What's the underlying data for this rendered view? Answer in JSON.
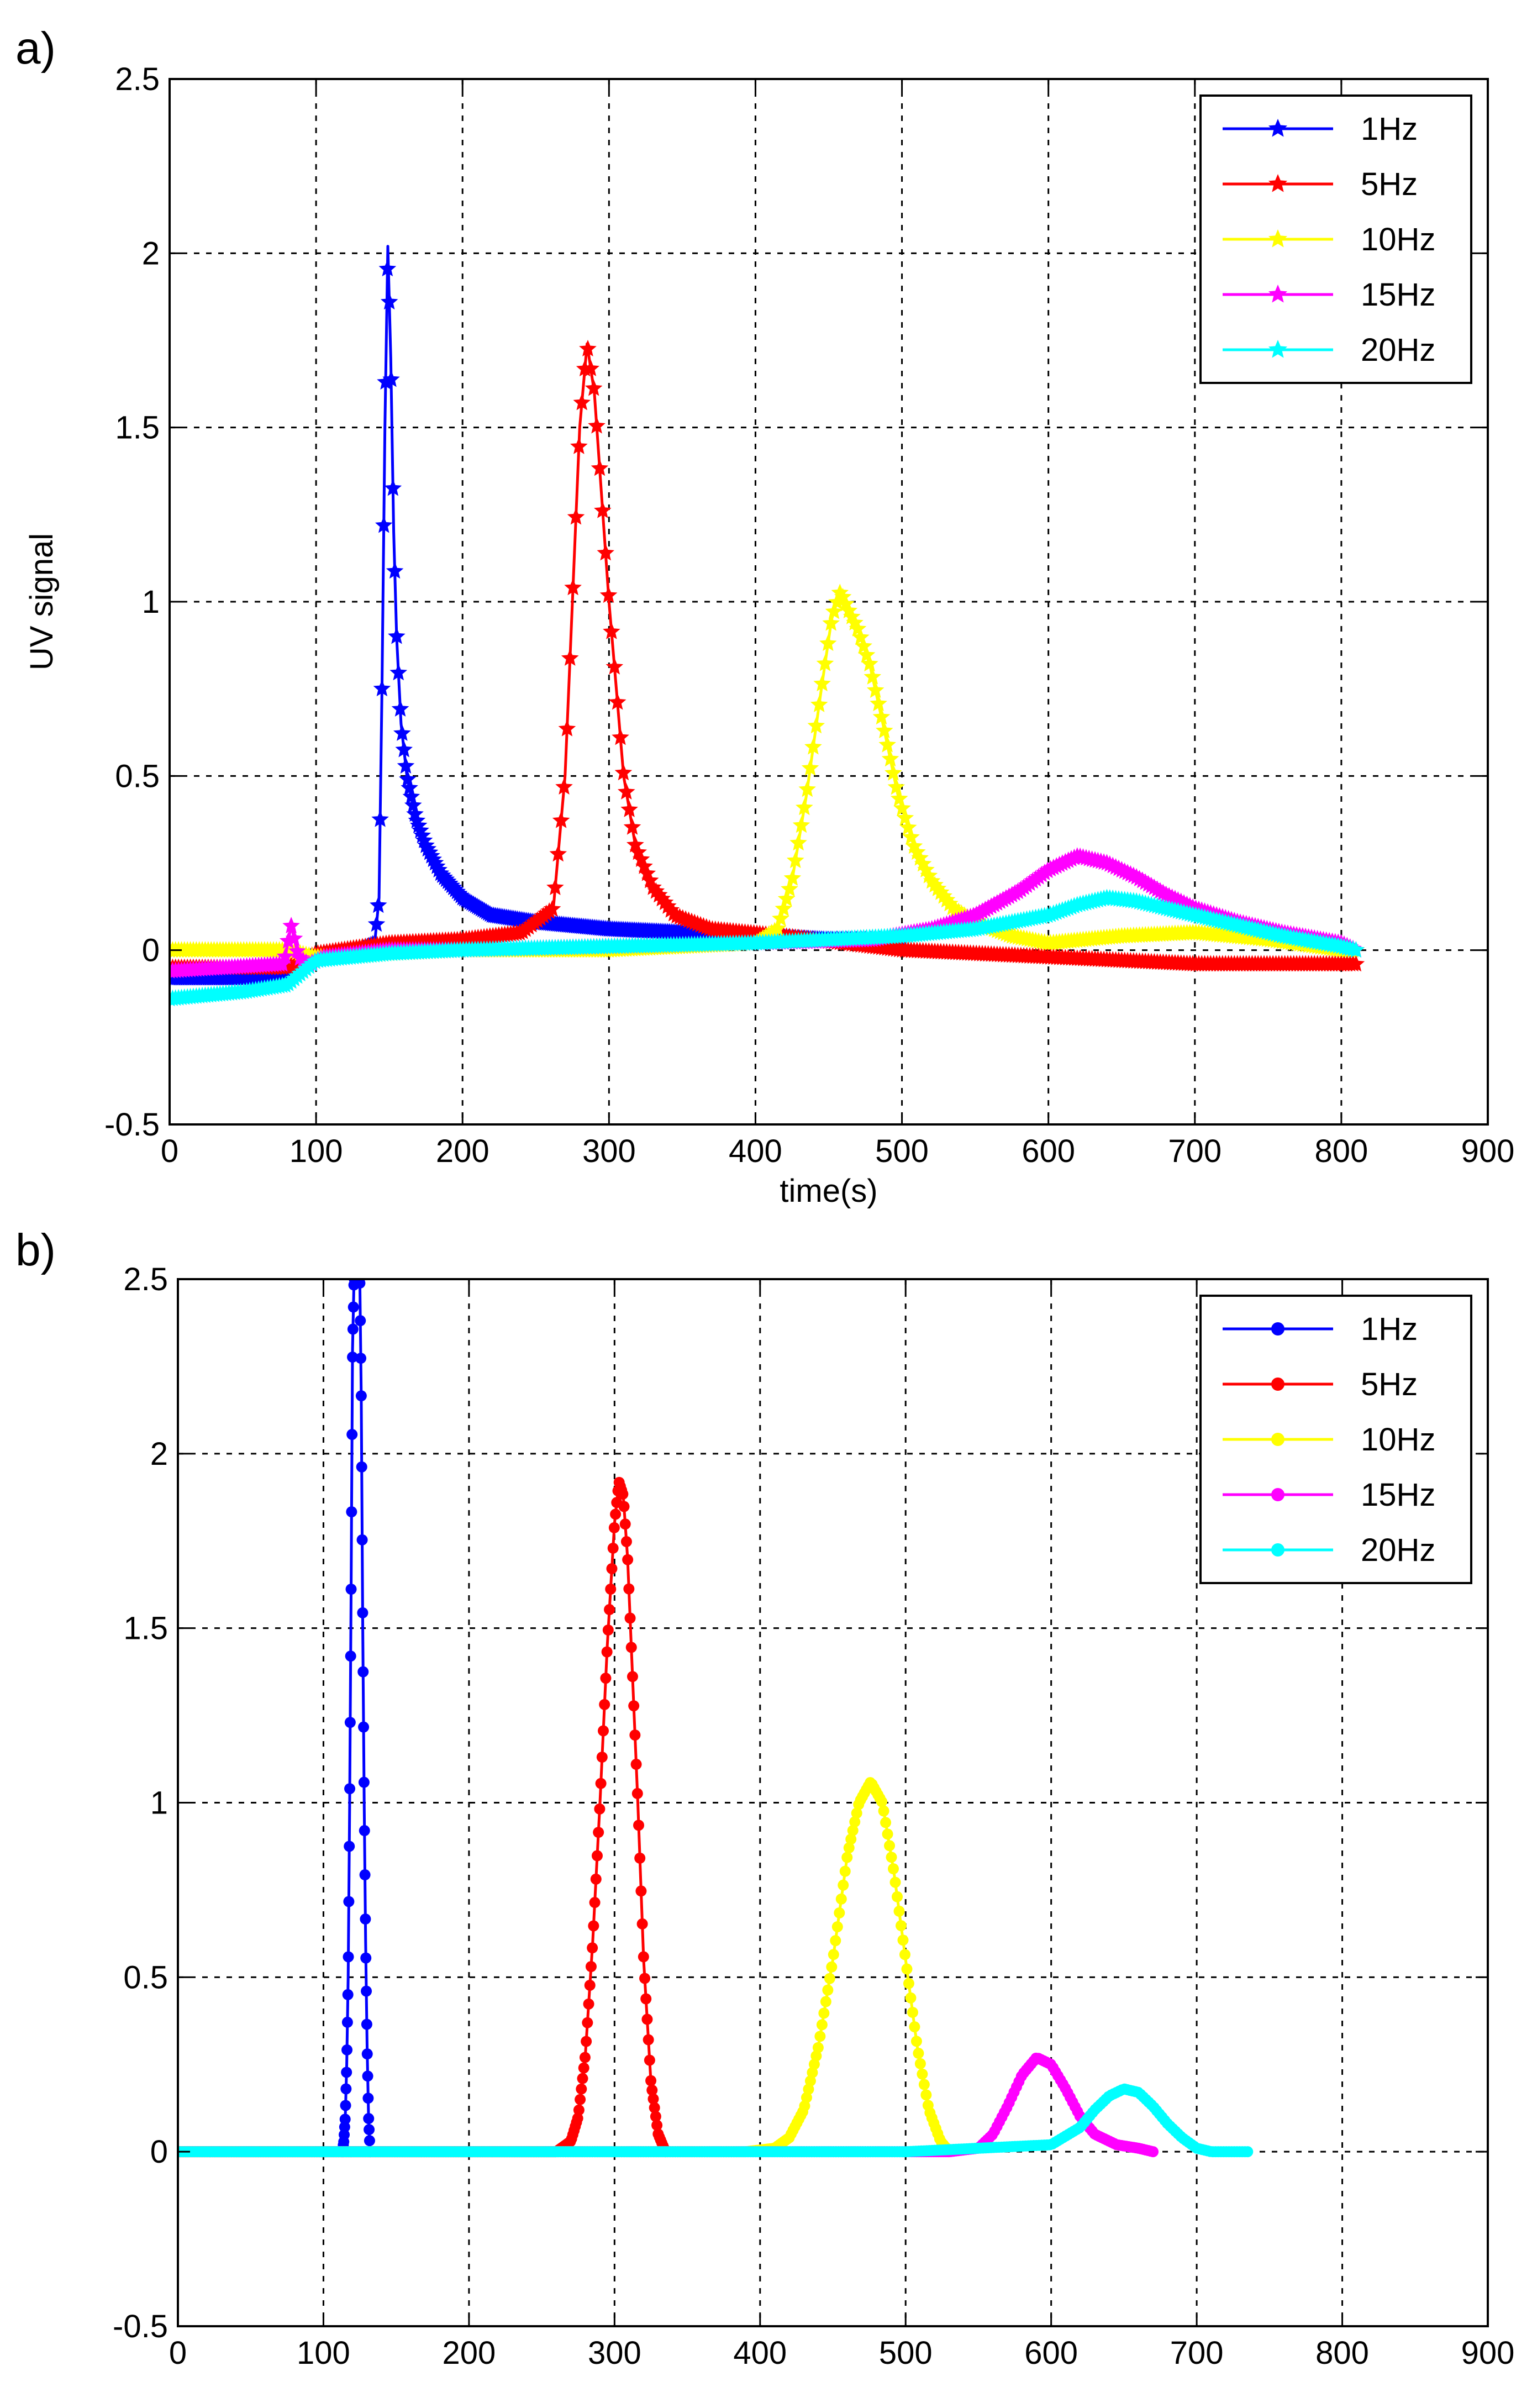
{
  "chart_data": [
    {
      "panel_label": "a)",
      "type": "line",
      "xlabel": "time(s)",
      "ylabel": "UV signal",
      "xlim": [
        0,
        900
      ],
      "ylim": [
        -0.5,
        2.5
      ],
      "xticks": [
        "0",
        "100",
        "200",
        "300",
        "400",
        "500",
        "600",
        "700",
        "800",
        "900"
      ],
      "yticks": [
        "-0.5",
        "0",
        "0.5",
        "1",
        "1.5",
        "2",
        "2.5"
      ],
      "grid": true,
      "legend_position": "top-right",
      "series": [
        {
          "name": "1Hz",
          "color": "#0000ff",
          "marker": "star",
          "x": [
            0,
            80,
            95,
            130,
            140,
            143,
            145,
            147,
            149,
            151,
            153,
            155,
            158,
            162,
            168,
            175,
            185,
            200,
            220,
            250,
            300,
            350,
            400,
            450,
            500
          ],
          "y": [
            -0.08,
            -0.08,
            -0.02,
            0.0,
            0.02,
            0.15,
            0.75,
            1.5,
            2.02,
            1.7,
            1.2,
            0.9,
            0.65,
            0.5,
            0.38,
            0.3,
            0.22,
            0.15,
            0.1,
            0.08,
            0.06,
            0.05,
            0.04,
            0.03,
            0.03
          ]
        },
        {
          "name": "5Hz",
          "color": "#ff0000",
          "marker": "star",
          "x": [
            0,
            80,
            100,
            150,
            200,
            240,
            262,
            270,
            275,
            280,
            285,
            290,
            295,
            300,
            305,
            310,
            318,
            330,
            345,
            370,
            420,
            500,
            600,
            700,
            800,
            810
          ],
          "y": [
            -0.05,
            -0.05,
            -0.01,
            0.02,
            0.03,
            0.05,
            0.12,
            0.5,
            1.0,
            1.5,
            1.74,
            1.6,
            1.3,
            1.0,
            0.75,
            0.5,
            0.3,
            0.18,
            0.1,
            0.06,
            0.04,
            0.0,
            -0.02,
            -0.04,
            -0.04,
            -0.04
          ]
        },
        {
          "name": "10Hz",
          "color": "#ffff00",
          "marker": "star",
          "x": [
            0,
            80,
            100,
            200,
            300,
            400,
            415,
            425,
            435,
            445,
            452,
            458,
            463,
            470,
            478,
            487,
            497,
            508,
            520,
            535,
            550,
            575,
            600,
            650,
            700,
            750,
            800,
            810
          ],
          "y": [
            0.0,
            0.0,
            -0.02,
            0.0,
            0.0,
            0.02,
            0.06,
            0.2,
            0.45,
            0.75,
            0.95,
            1.03,
            0.98,
            0.92,
            0.82,
            0.65,
            0.45,
            0.3,
            0.2,
            0.12,
            0.08,
            0.04,
            0.02,
            0.04,
            0.05,
            0.03,
            0.0,
            0.0
          ]
        },
        {
          "name": "15Hz",
          "color": "#ff00ff",
          "marker": "star",
          "x": [
            0,
            78,
            83,
            88,
            95,
            105,
            150,
            200,
            300,
            400,
            480,
            520,
            550,
            580,
            600,
            620,
            640,
            660,
            680,
            700,
            730,
            760,
            800,
            810
          ],
          "y": [
            -0.06,
            -0.04,
            0.07,
            -0.02,
            -0.04,
            -0.02,
            0.0,
            0.0,
            0.01,
            0.02,
            0.03,
            0.06,
            0.1,
            0.17,
            0.23,
            0.27,
            0.25,
            0.21,
            0.16,
            0.12,
            0.08,
            0.05,
            0.02,
            0.0
          ]
        },
        {
          "name": "20Hz",
          "color": "#00ffff",
          "marker": "star",
          "x": [
            0,
            50,
            80,
            100,
            150,
            200,
            300,
            400,
            450,
            500,
            550,
            600,
            620,
            640,
            660,
            680,
            700,
            730,
            760,
            800,
            810
          ],
          "y": [
            -0.14,
            -0.12,
            -0.1,
            -0.03,
            -0.01,
            0.0,
            0.01,
            0.02,
            0.03,
            0.04,
            0.06,
            0.1,
            0.13,
            0.15,
            0.14,
            0.12,
            0.1,
            0.07,
            0.04,
            0.01,
            0.0
          ]
        }
      ]
    },
    {
      "panel_label": "b)",
      "type": "line",
      "xlabel": "",
      "ylabel": "",
      "xlim": [
        0,
        900
      ],
      "ylim": [
        -0.5,
        2.5
      ],
      "xticks": [
        "0",
        "100",
        "200",
        "300",
        "400",
        "500",
        "600",
        "700",
        "800",
        "900"
      ],
      "yticks": [
        "-0.5",
        "0",
        "0.5",
        "1",
        "1.5",
        "2",
        "2.5"
      ],
      "grid": true,
      "legend_position": "top-right",
      "series": [
        {
          "name": "1Hz",
          "color": "#0000ff",
          "marker": "dot",
          "x": [
            113,
            114,
            115,
            116,
            117,
            118,
            119,
            120,
            121,
            122,
            123,
            124,
            125,
            126,
            127,
            128,
            129,
            130,
            131,
            132
          ],
          "y": [
            0.0,
            0.03,
            0.1,
            0.25,
            0.5,
            1.0,
            1.6,
            2.3,
            2.5,
            2.5,
            2.5,
            2.5,
            2.5,
            2.16,
            1.5,
            1.0,
            0.6,
            0.3,
            0.1,
            0.0
          ]
        },
        {
          "name": "5Hz",
          "color": "#ff0000",
          "marker": "dot",
          "x": [
            0,
            260,
            270,
            275,
            280,
            285,
            290,
            295,
            300,
            303,
            306,
            309,
            312,
            316,
            320,
            325,
            330,
            335
          ],
          "y": [
            0.0,
            0.0,
            0.03,
            0.1,
            0.28,
            0.6,
            1.0,
            1.45,
            1.8,
            1.92,
            1.88,
            1.7,
            1.4,
            1.0,
            0.55,
            0.2,
            0.05,
            0.0
          ]
        },
        {
          "name": "10Hz",
          "color": "#ffff00",
          "marker": "dot",
          "x": [
            0,
            390,
            410,
            420,
            430,
            440,
            450,
            460,
            468,
            476,
            484,
            492,
            500,
            508,
            516,
            524,
            530
          ],
          "y": [
            0.0,
            0.0,
            0.01,
            0.04,
            0.12,
            0.3,
            0.55,
            0.85,
            1.0,
            1.06,
            1.0,
            0.8,
            0.55,
            0.3,
            0.12,
            0.03,
            0.0
          ]
        },
        {
          "name": "15Hz",
          "color": "#ff00ff",
          "marker": "dot",
          "x": [
            0,
            530,
            550,
            560,
            570,
            580,
            590,
            600,
            610,
            620,
            630,
            645,
            660,
            670
          ],
          "y": [
            0.0,
            0.0,
            0.01,
            0.05,
            0.13,
            0.22,
            0.27,
            0.25,
            0.18,
            0.1,
            0.05,
            0.02,
            0.01,
            0.0
          ]
        },
        {
          "name": "20Hz",
          "color": "#00ffff",
          "marker": "dot",
          "x": [
            0,
            100,
            200,
            300,
            400,
            500,
            600,
            620,
            630,
            640,
            650,
            660,
            670,
            680,
            690,
            700,
            710,
            720,
            735
          ],
          "y": [
            0.0,
            0.0,
            0.0,
            0.0,
            0.0,
            0.0,
            0.02,
            0.07,
            0.12,
            0.16,
            0.18,
            0.17,
            0.13,
            0.08,
            0.04,
            0.01,
            0.0,
            0.0,
            0.0
          ]
        }
      ]
    }
  ]
}
